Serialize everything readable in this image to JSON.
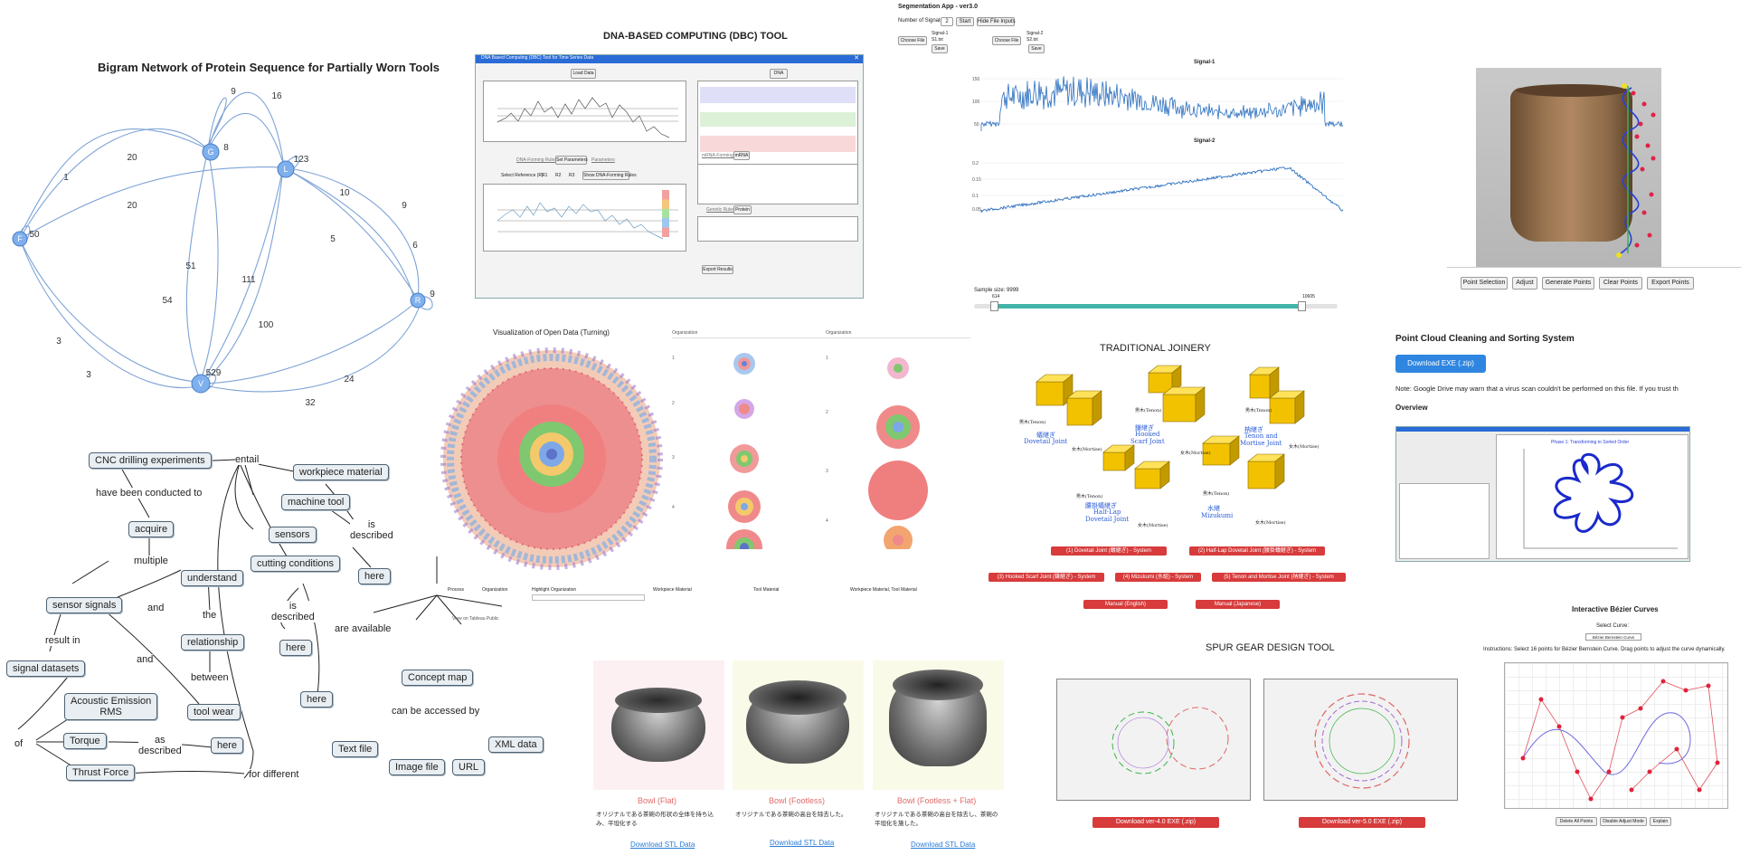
{
  "bigram": {
    "title": "Bigram Network of Protein Sequence for Partially Worn Tools",
    "nodes": [
      "F",
      "G",
      "L",
      "R",
      "V"
    ],
    "edge_labels": [
      "9",
      "16",
      "20",
      "1",
      "20",
      "50",
      "8",
      "123",
      "10",
      "9",
      "5",
      "6",
      "9",
      "51",
      "54",
      "111",
      "100",
      "3",
      "3",
      "529",
      "24",
      "32"
    ]
  },
  "dbc": {
    "title": "DNA-BASED COMPUTING (DBC) TOOL",
    "window_title": "DNA Based Computing (DBC) Tool for Time Series Data",
    "load_data": "Load Data",
    "dna": "DNA",
    "dna_forming_rules": "DNA-Forming Rules",
    "set_parameters": "Set Parameters",
    "parameters": "Parameters",
    "mrna_forming_rule": "mRNA-Forming Rule",
    "mrna": "mRNA",
    "select_reference": "Select Reference (R)",
    "r1": "R1",
    "r2": "R2",
    "r3": "R3",
    "show_rules": "Show DNA-Forming Rules",
    "genetic_rules": "Genetic Rules",
    "protein": "Protein",
    "export_results": "Export Results"
  },
  "seg": {
    "title": "Segmentation App - ver3.0",
    "num_signals_label": "Number of Signals:",
    "num_signals_value": "2",
    "start": "Start",
    "hide_inputs": "Hide File Inputs",
    "choose_file": "Choose File",
    "signal1_label": "Signal-1",
    "signal2_label": "Signal-2",
    "file1": "S1.txt",
    "file2": "S2.txt",
    "save": "Save",
    "chart1_title": "Signal-1",
    "chart2_title": "Signal-2",
    "sample_size_label": "Sample size: 9999",
    "slider_min": "614",
    "slider_max": "10605"
  },
  "cup": {
    "buttons": [
      "Point Selection",
      "Adjust",
      "Generate Points",
      "Clear Points",
      "Export Points"
    ]
  },
  "turning": {
    "title": "Visualization of Open Data (Turning)",
    "org_header_1": "Organization",
    "org_header_2": "Organization",
    "filters": {
      "process": "Process",
      "organization": "Organization",
      "highlight": "Highlight Organization",
      "workpiece": "Workpiece Material",
      "tool": "Tool Material",
      "workpiece_tool": "Workpiece Material, Tool Material"
    },
    "footer": "View on Tableau Public"
  },
  "joinery": {
    "title": "TRADITIONAL JOINERY",
    "joints": [
      {
        "jp": "蟻継ぎ",
        "en": "Dovetail Joint"
      },
      {
        "jp": "鎌継ぎ",
        "en": "Hooked Scarf Joint"
      },
      {
        "jp": "枘継ぎ",
        "en": "Tenon and Mortise Joint"
      },
      {
        "jp": "腰掛蟻継ぎ",
        "en": "Half-Lap Dovetail Joint"
      },
      {
        "jp": "水継",
        "en": "Mizukumi"
      }
    ],
    "parts": {
      "tenon": "男木(Tenon)",
      "mortise": "女木(Mortise)"
    },
    "buttons": [
      "(1) Dovetail Joint (蟻継ぎ) - System",
      "(2) Half-Lap Dovetail Joint (腰掛蟻継ぎ) - System",
      "(3) Hooked Scarf Joint (鎌継ぎ) - System",
      "(4) Mizukumi (水組) - System",
      "(5) Tenon and Mortise Joint (枘継ぎ) - System",
      "Manual (English)",
      "Manual (Japanese)"
    ]
  },
  "pointcloud": {
    "title": "Point Cloud Cleaning and Sorting System",
    "download": "Download EXE (.zip)",
    "note": "Note: Google Drive may warn that a virus scan couldn't be performed on this file. If you trust th",
    "overview": "Overview",
    "plot_title": "Phase 1: Transforming to Sorted Order"
  },
  "concept": {
    "nodes": {
      "cnc": "CNC drilling experiments",
      "acquire": "acquire",
      "sensor_signals": "sensor signals",
      "signal_datasets": "signal datasets",
      "ae": "Acoustic Emission\nRMS",
      "torque": "Torque",
      "thrust": "Thrust Force",
      "understand": "understand",
      "relationship": "relationship",
      "tool_wear": "tool wear",
      "workpiece": "workpiece material",
      "machine_tool": "machine tool",
      "sensors": "sensors",
      "cutting": "cutting conditions",
      "here1": "here",
      "here2": "here",
      "here3": "here",
      "here4": "here",
      "concept_map": "Concept map",
      "text_file": "Text file",
      "image_file": "Image file",
      "url": "URL",
      "xml": "XML data"
    },
    "links": {
      "entail": "entail",
      "conducted": "have been conducted to",
      "multiple": "multiple",
      "and1": "and",
      "the": "the",
      "between": "between",
      "result_in": "result in",
      "and2": "and",
      "of": "of",
      "as_described": "as\ndescribed",
      "for_different": "for different",
      "is_described1": "is\ndescribed",
      "is_described2": "is\ndescribed",
      "are_available": "are available",
      "accessed": "can be accessed by"
    }
  },
  "bowls": {
    "items": [
      {
        "title": "Bowl (Flat)",
        "desc": "オリジナルである茶碗の形状の全体を持ち込み、平坦化する",
        "link": "Download STL Data"
      },
      {
        "title": "Bowl (Footless)",
        "desc": "オリジナルである茶碗の高台を除去した。",
        "link": "Download STL Data"
      },
      {
        "title": "Bowl (Footless + Flat)",
        "desc": "オリジナルである茶碗の高台を除去し、茶碗の平坦化を施した。",
        "link": "Download STL Data"
      }
    ]
  },
  "gear": {
    "title": "SPUR GEAR DESIGN TOOL",
    "download4": "Download ver-4.0 EXE (.zip)",
    "download5": "Download ver-5.0 EXE (.zip)"
  },
  "bezier": {
    "title": "Interactive Bézier Curves",
    "select_label": "Select Curve:",
    "select_value": "Bézier Bernstein Curve",
    "instructions": "Instructions: Select 16 points for Bézier Bernstein Curve. Drag points to adjust the curve dynamically.",
    "delete": "Delete All Points",
    "disable": "Disable Adjust Mode",
    "explain": "Explain"
  },
  "colors": {
    "accent_blue": "#2f86e0",
    "red_button": "#d73b3b",
    "signal_blue": "#2b6fbf",
    "teal": "#43b4a8"
  }
}
